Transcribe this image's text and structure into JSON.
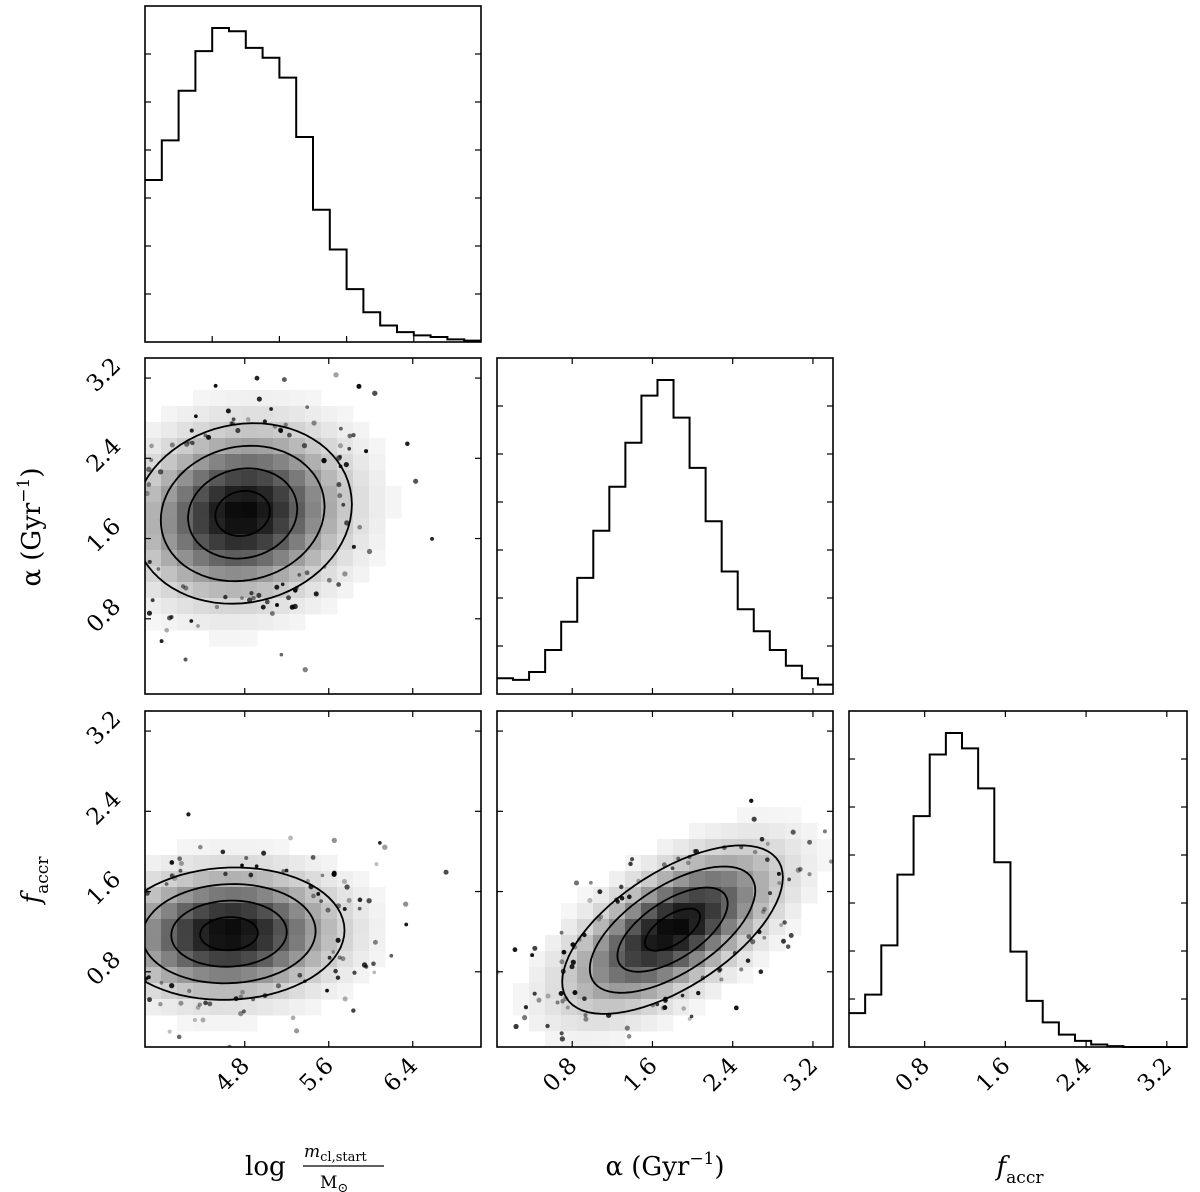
{
  "chart_data": {
    "type": "corner",
    "parameters": [
      {
        "key": "logm",
        "label_prefix": "log",
        "label_num": "m",
        "label_num_sub": "cl,start",
        "label_den": "M",
        "label_den_sub": "⊙",
        "range": [
          3.85,
          7.05
        ]
      },
      {
        "key": "alpha",
        "label": "α (Gyr",
        "label_sup": "−1",
        "label_suffix": ")",
        "range": [
          0.05,
          3.4
        ]
      },
      {
        "key": "faccr",
        "label": "f",
        "label_sub": "accr",
        "range": [
          0.05,
          3.4
        ]
      }
    ],
    "ticks": {
      "logm": [
        "4.8",
        "5.6",
        "6.4"
      ],
      "alpha": [
        "0.8",
        "1.6",
        "2.4",
        "3.2"
      ],
      "faccr": [
        "0.8",
        "1.6",
        "2.4",
        "3.2"
      ]
    },
    "hist_logm": {
      "edges": [
        3.85,
        4.01,
        4.17,
        4.33,
        4.49,
        4.65,
        4.81,
        4.97,
        5.13,
        5.29,
        5.45,
        5.61,
        5.77,
        5.93,
        6.09,
        6.25,
        6.41,
        6.57,
        6.73,
        6.89,
        7.05
      ],
      "counts": [
        0.49,
        0.61,
        0.76,
        0.88,
        0.95,
        0.94,
        0.89,
        0.86,
        0.8,
        0.62,
        0.4,
        0.28,
        0.16,
        0.09,
        0.05,
        0.03,
        0.02,
        0.015,
        0.008,
        0.004
      ]
    },
    "hist_alpha": {
      "edges": [
        0.05,
        0.21,
        0.37,
        0.53,
        0.69,
        0.85,
        1.01,
        1.17,
        1.33,
        1.49,
        1.65,
        1.81,
        1.97,
        2.13,
        2.29,
        2.45,
        2.61,
        2.77,
        2.93,
        3.09,
        3.25,
        3.4
      ],
      "counts": [
        0.05,
        0.045,
        0.07,
        0.14,
        0.23,
        0.37,
        0.52,
        0.66,
        0.8,
        0.95,
        1.0,
        0.88,
        0.72,
        0.55,
        0.39,
        0.27,
        0.2,
        0.14,
        0.09,
        0.05,
        0.03
      ]
    },
    "hist_faccr": {
      "edges": [
        0.05,
        0.21,
        0.37,
        0.53,
        0.69,
        0.85,
        1.01,
        1.17,
        1.33,
        1.49,
        1.65,
        1.81,
        1.97,
        2.13,
        2.29,
        2.45,
        2.61,
        2.77,
        2.93,
        3.09,
        3.25,
        3.4
      ],
      "counts": [
        0.11,
        0.17,
        0.33,
        0.56,
        0.75,
        0.95,
        1.02,
        0.97,
        0.84,
        0.6,
        0.31,
        0.15,
        0.08,
        0.04,
        0.02,
        0.008,
        0.003,
        0.0,
        0.0,
        0.0,
        0.0
      ]
    },
    "density_alpha_vs_logm": {
      "center": [
        4.78,
        1.85
      ],
      "sigma": [
        0.52,
        0.45
      ],
      "rho": 0.1
    },
    "density_faccr_vs_logm": {
      "center": [
        4.65,
        1.18
      ],
      "sigma": [
        0.55,
        0.33
      ],
      "rho": 0.05
    },
    "density_faccr_vs_alpha": {
      "center": [
        1.8,
        1.22
      ],
      "sigma": [
        0.55,
        0.42
      ],
      "rho": 0.62
    },
    "contour_levels_sigma": [
      0.5,
      1.0,
      1.5,
      2.0
    ]
  }
}
